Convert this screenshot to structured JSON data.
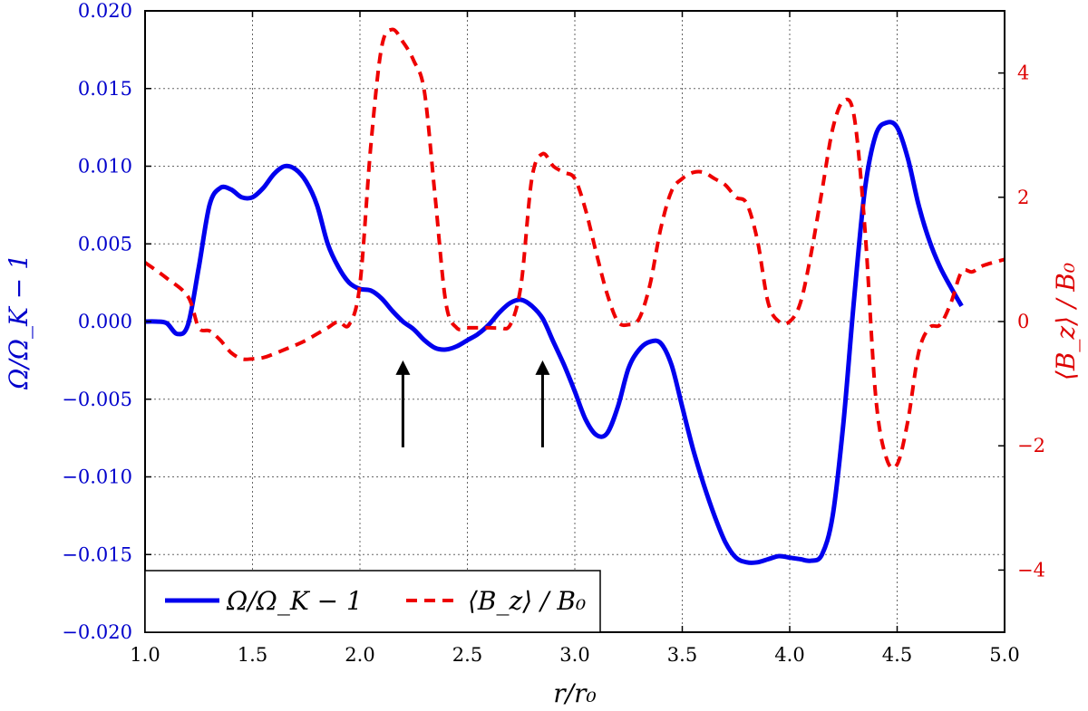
{
  "chart_data": {
    "type": "line",
    "xlabel": "r/r₀",
    "ylabel_left": "Ω/Ω_K − 1",
    "ylabel_right": "⟨B_z⟩ / B₀",
    "xlim": [
      1.0,
      5.0
    ],
    "ylim_left": [
      -0.02,
      0.02
    ],
    "ylim_right": [
      -5,
      5
    ],
    "grid": true,
    "legend_position": "bottom-left",
    "colors": {
      "left_axis": "#0000cc",
      "right_axis": "#dd0000",
      "series_omega": "#0000ee",
      "series_bz": "#ee0000",
      "arrow": "#000000"
    },
    "x_ticks": [
      "1.0",
      "1.5",
      "2.0",
      "2.5",
      "3.0",
      "3.5",
      "4.0",
      "4.5",
      "5.0"
    ],
    "y_left_ticks": [
      "0.020",
      "0.015",
      "0.010",
      "0.005",
      "0.000",
      "−0.005",
      "−0.010",
      "−0.015",
      "−0.020"
    ],
    "y_right_ticks": [
      "4",
      "2",
      "0",
      "−2",
      "−4"
    ],
    "arrows_x": [
      2.2,
      2.85
    ],
    "series": [
      {
        "name": "Ω/Ω_K − 1",
        "axis": "left",
        "style": "solid",
        "x": [
          1.0,
          1.05,
          1.1,
          1.15,
          1.2,
          1.25,
          1.3,
          1.35,
          1.4,
          1.45,
          1.5,
          1.55,
          1.6,
          1.65,
          1.7,
          1.75,
          1.8,
          1.85,
          1.9,
          1.95,
          2.0,
          2.05,
          2.1,
          2.15,
          2.2,
          2.25,
          2.3,
          2.35,
          2.4,
          2.45,
          2.5,
          2.55,
          2.6,
          2.65,
          2.7,
          2.75,
          2.8,
          2.85,
          2.9,
          2.95,
          3.0,
          3.05,
          3.1,
          3.15,
          3.2,
          3.25,
          3.3,
          3.35,
          3.4,
          3.45,
          3.5,
          3.55,
          3.6,
          3.65,
          3.7,
          3.75,
          3.8,
          3.85,
          3.9,
          3.95,
          4.0,
          4.05,
          4.1,
          4.15,
          4.2,
          4.25,
          4.3,
          4.35,
          4.4,
          4.45,
          4.5,
          4.55,
          4.6,
          4.65,
          4.7,
          4.75,
          4.8
        ],
        "values": [
          0.0,
          0.0,
          -0.0001,
          -0.0008,
          -0.0002,
          0.0035,
          0.0075,
          0.0086,
          0.0085,
          0.008,
          0.008,
          0.0086,
          0.0095,
          0.01,
          0.0098,
          0.009,
          0.0075,
          0.005,
          0.0035,
          0.0025,
          0.0021,
          0.002,
          0.0015,
          0.0007,
          0.0,
          -0.0005,
          -0.0012,
          -0.0017,
          -0.0018,
          -0.0016,
          -0.0012,
          -0.0008,
          -0.0002,
          0.0006,
          0.0012,
          0.0014,
          0.001,
          0.0002,
          -0.0013,
          -0.0028,
          -0.0045,
          -0.0063,
          -0.0073,
          -0.0072,
          -0.0055,
          -0.003,
          -0.0018,
          -0.0013,
          -0.0014,
          -0.0028,
          -0.0055,
          -0.0082,
          -0.0105,
          -0.0125,
          -0.0142,
          -0.0152,
          -0.0155,
          -0.0155,
          -0.0153,
          -0.0151,
          -0.0152,
          -0.0153,
          -0.0154,
          -0.015,
          -0.0125,
          -0.0065,
          0.0015,
          0.0085,
          0.012,
          0.0128,
          0.0125,
          0.0105,
          0.0075,
          0.0052,
          0.0035,
          0.0022,
          0.001
        ]
      },
      {
        "name": "⟨B_z⟩ / B₀",
        "axis": "right",
        "style": "dashed",
        "x": [
          1.0,
          1.1,
          1.2,
          1.25,
          1.3,
          1.35,
          1.4,
          1.45,
          1.5,
          1.55,
          1.6,
          1.65,
          1.7,
          1.75,
          1.8,
          1.85,
          1.9,
          1.95,
          2.0,
          2.05,
          2.1,
          2.15,
          2.2,
          2.25,
          2.3,
          2.35,
          2.4,
          2.45,
          2.5,
          2.55,
          2.6,
          2.65,
          2.7,
          2.75,
          2.8,
          2.85,
          2.9,
          2.95,
          3.0,
          3.05,
          3.1,
          3.15,
          3.2,
          3.25,
          3.3,
          3.35,
          3.4,
          3.45,
          3.5,
          3.55,
          3.6,
          3.65,
          3.7,
          3.75,
          3.8,
          3.85,
          3.9,
          3.95,
          4.0,
          4.05,
          4.1,
          4.15,
          4.2,
          4.25,
          4.3,
          4.35,
          4.4,
          4.45,
          4.5,
          4.55,
          4.6,
          4.65,
          4.7,
          4.75,
          4.8,
          4.85,
          4.9,
          5.0
        ],
        "values": [
          0.95,
          0.7,
          0.4,
          -0.1,
          -0.15,
          -0.3,
          -0.5,
          -0.6,
          -0.6,
          -0.58,
          -0.52,
          -0.45,
          -0.38,
          -0.3,
          -0.2,
          -0.1,
          0.0,
          -0.05,
          0.6,
          2.8,
          4.4,
          4.7,
          4.5,
          4.2,
          3.7,
          2.0,
          0.3,
          -0.1,
          -0.1,
          -0.1,
          -0.1,
          -0.1,
          -0.05,
          0.6,
          2.3,
          2.7,
          2.5,
          2.4,
          2.3,
          1.8,
          1.1,
          0.45,
          0.0,
          -0.05,
          0.05,
          0.6,
          1.5,
          2.1,
          2.3,
          2.4,
          2.4,
          2.3,
          2.2,
          2.0,
          1.9,
          1.3,
          0.3,
          0.0,
          0.0,
          0.3,
          1.1,
          2.1,
          3.1,
          3.55,
          3.3,
          1.5,
          -1.2,
          -2.2,
          -2.3,
          -1.6,
          -0.5,
          -0.1,
          -0.05,
          0.3,
          0.8,
          0.8,
          0.9,
          1.0
        ]
      }
    ]
  }
}
